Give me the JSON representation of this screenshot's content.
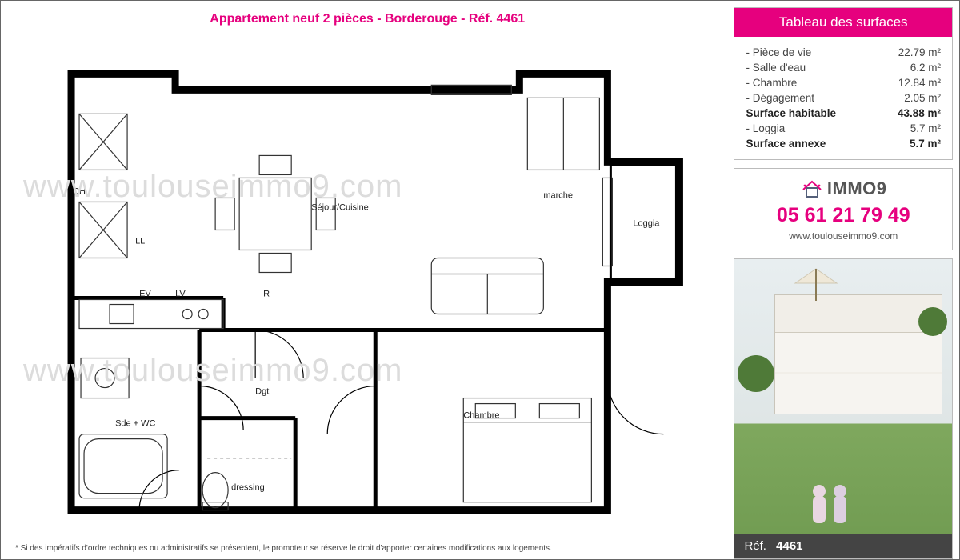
{
  "accent_color": "#e6007e",
  "border_color": "#bbbbbb",
  "title": "Appartement neuf 2 pièces - Borderouge - Réf. 4461",
  "watermark": "www.toulouseimmo9.com",
  "disclaimer": "* Si des impératifs d'ordre techniques ou administratifs se présentent, le promoteur se réserve le droit d'apporter certaines modifications aux logements.",
  "floorplan": {
    "rooms": {
      "sejour": "Séjour/Cuisine",
      "loggia": "Loggia",
      "sde": "Sde + WC",
      "dressing": "dressing",
      "chambre": "Chambre",
      "dgt": "Dgt",
      "marche": "marche"
    },
    "appliances": {
      "ch": "CH",
      "ll": "LL",
      "ev": "EV",
      "lv": "LV",
      "r": "R"
    },
    "wall_stroke": "#000000",
    "wall_width_outer": 9,
    "wall_width_inner": 5,
    "furniture_stroke": "#333333"
  },
  "surfaces": {
    "header": "Tableau des surfaces",
    "rows": [
      {
        "label": "- Pièce de vie",
        "value": "22.79 m²",
        "bold": false
      },
      {
        "label": "- Salle d'eau",
        "value": "6.2 m²",
        "bold": false
      },
      {
        "label": "- Chambre",
        "value": "12.84 m²",
        "bold": false
      },
      {
        "label": "- Dégagement",
        "value": "2.05 m²",
        "bold": false
      },
      {
        "label": "Surface habitable",
        "value": "43.88 m²",
        "bold": true
      },
      {
        "label": "- Loggia",
        "value": "5.7 m²",
        "bold": false
      },
      {
        "label": "Surface annexe",
        "value": "5.7 m²",
        "bold": true
      }
    ]
  },
  "contact": {
    "brand": "IMMO9",
    "phone": "05 61 21 79 49",
    "website": "www.toulouseimmo9.com"
  },
  "photo_ref": {
    "prefix": "Réf.",
    "number": "4461"
  }
}
